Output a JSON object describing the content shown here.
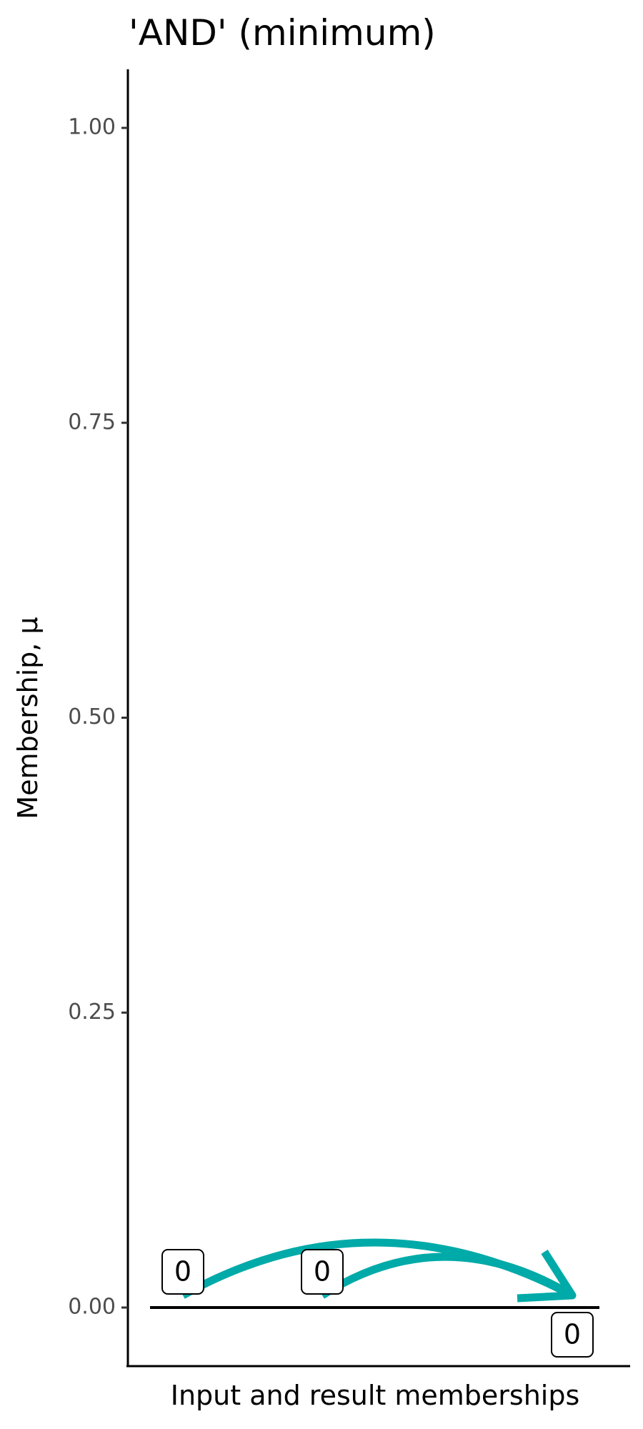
{
  "chart_data": {
    "type": "annotated-arrows",
    "title": "'AND' (minimum)",
    "xlabel": "Input and result memberships",
    "ylabel": "Membership, µ",
    "ylim": [
      -0.05,
      1.05
    ],
    "yticks": [
      0,
      0.25,
      0.5,
      0.75,
      1
    ],
    "ytick_labels": [
      "0.00",
      "0.25",
      "0.50",
      "0.75",
      "1.00"
    ],
    "grid": false,
    "reference_line_y": 0,
    "points": [
      {
        "role": "input",
        "value": 0,
        "label": "0"
      },
      {
        "role": "input",
        "value": 0,
        "label": "0"
      },
      {
        "role": "result",
        "value": 0,
        "label": "0"
      }
    ],
    "arrow_color": "#00AAA8"
  }
}
